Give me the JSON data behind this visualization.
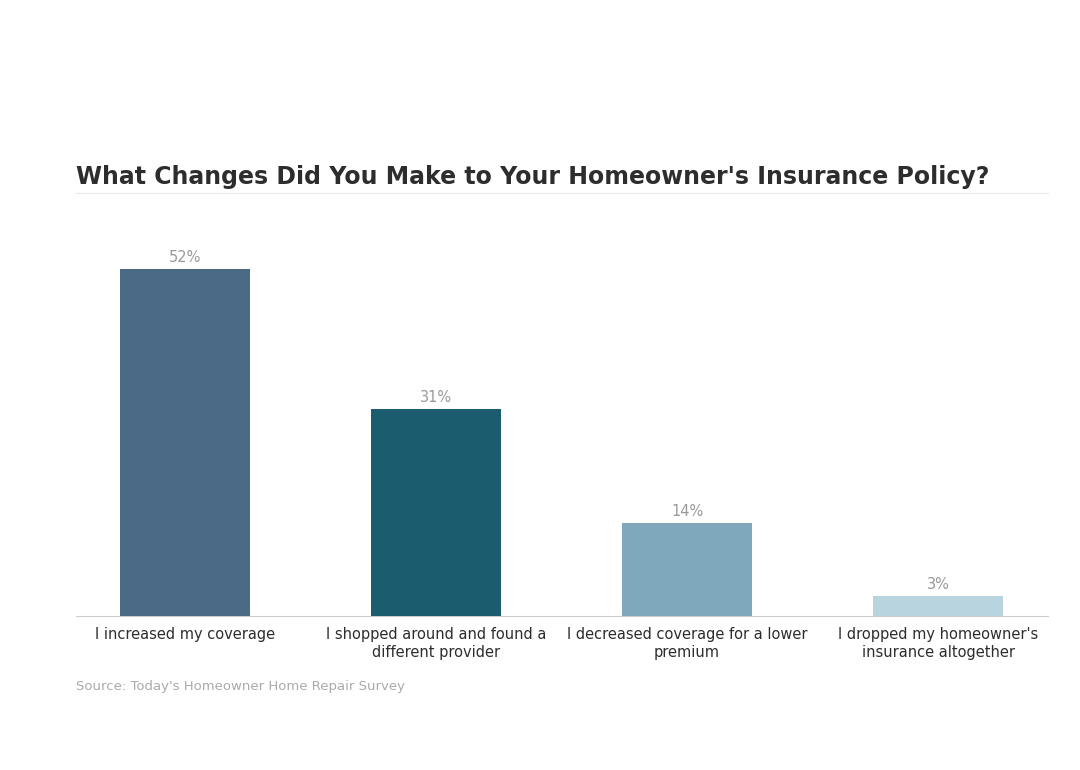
{
  "title": "What Changes Did You Make to Your Homeowner's Insurance Policy?",
  "categories": [
    "I increased my coverage",
    "I shopped around and found a\ndifferent provider",
    "I decreased coverage for a lower\npremium",
    "I dropped my homeowner's\ninsurance altogether"
  ],
  "values": [
    52,
    31,
    14,
    3
  ],
  "labels": [
    "52%",
    "31%",
    "14%",
    "3%"
  ],
  "bar_colors": [
    "#4a6a85",
    "#1b5c6e",
    "#7fa8bc",
    "#b8d4de"
  ],
  "background_color": "#ffffff",
  "title_color": "#2d2d2d",
  "label_color": "#999999",
  "source_text": "Source: Today's Homeowner Home Repair Survey",
  "source_color": "#aaaaaa",
  "title_fontsize": 17,
  "label_fontsize": 10.5,
  "tick_fontsize": 10.5,
  "source_fontsize": 9.5,
  "ylim": [
    0,
    60
  ],
  "grid_color": "#e8e8e8",
  "spine_color": "#cccccc"
}
